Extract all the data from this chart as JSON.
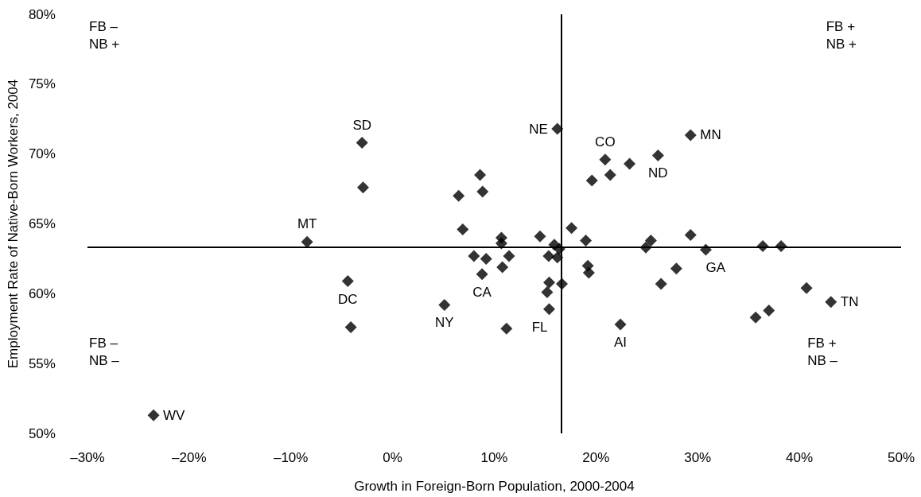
{
  "chart_data": {
    "type": "scatter",
    "xlabel": "Growth in Foreign-Born Population, 2000-2004",
    "ylabel": "Employment Rate of Native-Born Workers, 2004",
    "x": [
      -23.5,
      -8.4,
      -3.0,
      -2.9,
      -4.4,
      -4.1,
      5.1,
      16.2,
      29.3,
      20.9,
      23.3,
      26.1,
      21.4,
      19.6,
      8.6,
      8.85,
      6.5,
      6.9,
      17.6,
      29.3,
      14.5,
      10.7,
      10.7,
      19.0,
      15.9,
      16.4,
      25.4,
      24.9,
      30.8,
      36.4,
      38.2,
      8.0,
      9.2,
      11.45,
      10.8,
      8.8,
      15.35,
      16.2,
      19.2,
      19.3,
      27.9,
      26.4,
      15.4,
      16.65,
      15.2,
      15.4,
      11.2,
      22.4,
      40.7,
      43.1,
      35.7,
      37.0
    ],
    "values": [
      51.3,
      63.7,
      70.8,
      67.6,
      60.9,
      57.6,
      59.2,
      71.8,
      71.35,
      69.6,
      69.3,
      69.9,
      68.5,
      68.1,
      68.5,
      67.3,
      67.0,
      64.6,
      64.7,
      64.2,
      64.1,
      64.0,
      63.6,
      63.8,
      63.5,
      63.2,
      63.8,
      63.3,
      63.15,
      63.4,
      63.4,
      62.7,
      62.5,
      62.7,
      61.9,
      61.4,
      62.7,
      62.6,
      62.0,
      61.5,
      61.8,
      60.7,
      60.8,
      60.7,
      60.1,
      58.9,
      57.5,
      57.8,
      60.4,
      59.4,
      58.3,
      58.8
    ],
    "color": "#000000",
    "marker": "diamond",
    "grid": false,
    "xlim": [
      -30,
      50
    ],
    "xticks": [
      {
        "value": -30,
        "label": "–30%"
      },
      {
        "value": -20,
        "label": "–20%"
      },
      {
        "value": -10,
        "label": "–10%"
      },
      {
        "value": 0,
        "label": "0%"
      },
      {
        "value": 10,
        "label": "10%"
      },
      {
        "value": 20,
        "label": "20%"
      },
      {
        "value": 30,
        "label": "30%"
      },
      {
        "value": 40,
        "label": "40%"
      },
      {
        "value": 50,
        "label": "50%"
      }
    ],
    "ylim": [
      50,
      80
    ],
    "yticks": [
      {
        "value": 50,
        "label": "50%"
      },
      {
        "value": 55,
        "label": "55%"
      },
      {
        "value": 60,
        "label": "60%"
      },
      {
        "value": 65,
        "label": "65%"
      },
      {
        "value": 70,
        "label": "70%"
      },
      {
        "value": 75,
        "label": "75%"
      },
      {
        "value": 80,
        "label": "80%"
      }
    ],
    "ref_lines": [
      {
        "axis": "x",
        "value": 16.6
      },
      {
        "axis": "y",
        "value": 63.35
      }
    ],
    "annotations": [
      "FB –\nNB +",
      "FB +\nNB +",
      "FB –\nNB –",
      "FB +\nNB –",
      {
        "text": "WV",
        "x": -23.5,
        "y": 51.3
      },
      {
        "text": "MT",
        "x": -8.4,
        "y": 63.7
      },
      {
        "text": "SD",
        "x": -3.0,
        "y": 70.8
      },
      {
        "text": "DC",
        "x": -4.4,
        "y": 60.9
      },
      {
        "text": "NY",
        "x": 5.1,
        "y": 59.2
      },
      {
        "text": "NE",
        "x": 16.2,
        "y": 71.8
      },
      {
        "text": "MN",
        "x": 29.3,
        "y": 71.35
      },
      {
        "text": "CO",
        "x": 20.9,
        "y": 69.6
      },
      {
        "text": "ND",
        "x": 26.1,
        "y": 69.9
      },
      {
        "text": "GA",
        "x": 30.8,
        "y": 63.15
      },
      {
        "text": "CA",
        "x": 8.8,
        "y": 61.4
      },
      {
        "text": "FL",
        "x": 15.4,
        "y": 58.9
      },
      {
        "text": "AI",
        "x": 22.4,
        "y": 57.8
      },
      {
        "text": "TN",
        "x": 43.1,
        "y": 59.4
      }
    ]
  }
}
